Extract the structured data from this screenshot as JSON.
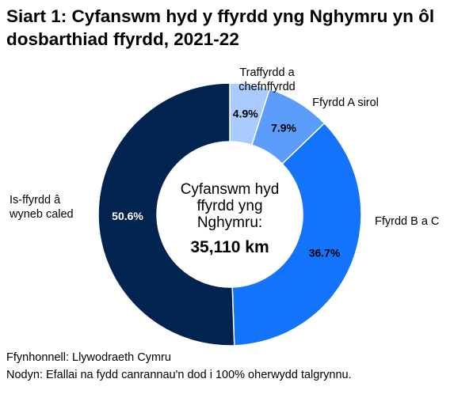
{
  "title": "Siart 1: Cyfanswm hyd y ffyrdd yng Nghymru yn ôl dosbarthiad ffyrdd, 2021-22",
  "center": {
    "line1": "Cyfanswm hyd",
    "line2": "ffyrdd yng",
    "line3": "Nghymru:",
    "total": "35,110 km"
  },
  "footnotes": {
    "source": "Ffynhonnell: Llywodraeth Cymru",
    "note": "Nodyn: Efallai na fydd canrannau'n dod i 100% oherwydd talgrynnu."
  },
  "chart_data": {
    "type": "pie",
    "title": "Siart 1: Cyfanswm hyd y ffyrdd yng Nghymru yn ôl dosbarthiad ffyrdd, 2021-22",
    "slices": [
      {
        "label": [
          "Traffyrdd a",
          "chefnffyrdd"
        ],
        "value": 4.9,
        "display": "4.9%",
        "color": "#a9cbff",
        "label_color": "#000000"
      },
      {
        "label": [
          "Ffyrdd A sirol"
        ],
        "value": 7.9,
        "display": "7.9%",
        "color": "#5c9cfb",
        "label_color": "#000000"
      },
      {
        "label": [
          "Ffyrdd B a C"
        ],
        "value": 36.7,
        "display": "36.7%",
        "color": "#1473fb",
        "label_color": "#000000"
      },
      {
        "label": [
          "Is-ffyrdd â",
          "wyneb caled"
        ],
        "value": 50.6,
        "display": "50.6%",
        "color": "#01234f",
        "label_color": "#ffffff"
      }
    ],
    "legend": "none",
    "donut": true
  }
}
